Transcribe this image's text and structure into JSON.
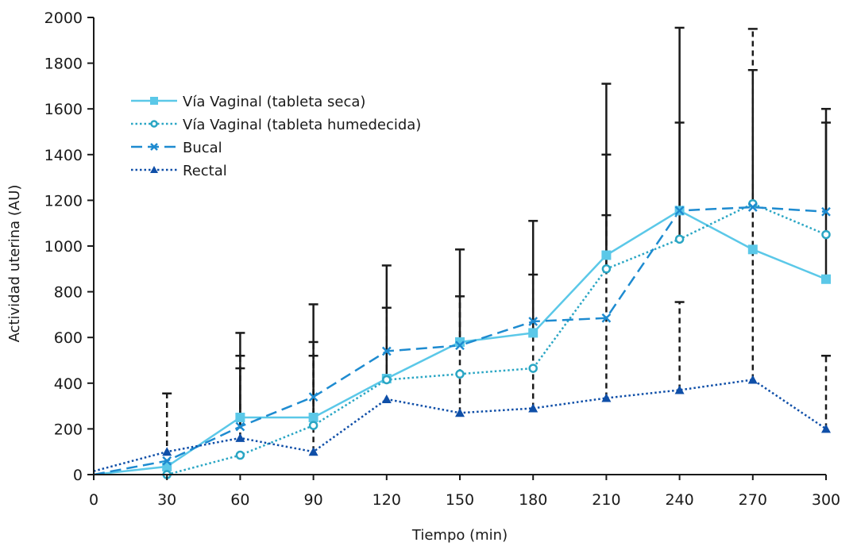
{
  "chart_data": {
    "type": "line",
    "title": "",
    "xlabel": "Tiempo (min)",
    "ylabel": "Actividad uterina (AU)",
    "xlim": [
      0,
      300
    ],
    "ylim": [
      0,
      2000
    ],
    "x_ticks": [
      0,
      30,
      60,
      90,
      120,
      150,
      180,
      210,
      240,
      270,
      300
    ],
    "y_ticks": [
      0,
      200,
      400,
      600,
      800,
      1000,
      1200,
      1400,
      1600,
      1800,
      2000
    ],
    "grid": false,
    "legend_position": "top-left",
    "series": [
      {
        "name": "Vía Vaginal (tableta seca)",
        "color": "#5bc8e8",
        "line_style": "solid",
        "marker": "square",
        "points": [
          [
            0,
            0
          ],
          [
            30,
            35
          ],
          [
            60,
            250
          ],
          [
            90,
            250
          ],
          [
            120,
            420
          ],
          [
            150,
            580
          ],
          [
            180,
            620
          ],
          [
            210,
            960
          ],
          [
            240,
            1155
          ],
          [
            270,
            985
          ],
          [
            300,
            855
          ]
        ]
      },
      {
        "name": "Vía Vaginal (tableta humedecida)",
        "color": "#2aa6c4",
        "line_style": "dotted",
        "marker": "circle",
        "points": [
          [
            30,
            0
          ],
          [
            60,
            85
          ],
          [
            90,
            215
          ],
          [
            120,
            415
          ],
          [
            150,
            440
          ],
          [
            180,
            465
          ],
          [
            210,
            900
          ],
          [
            240,
            1030
          ],
          [
            270,
            1185
          ],
          [
            300,
            1050
          ]
        ]
      },
      {
        "name": "Bucal",
        "color": "#1e8bd0",
        "line_style": "dashed",
        "marker": "x",
        "points": [
          [
            0,
            0
          ],
          [
            30,
            60
          ],
          [
            60,
            210
          ],
          [
            90,
            340
          ],
          [
            120,
            540
          ],
          [
            150,
            565
          ],
          [
            180,
            670
          ],
          [
            210,
            685
          ],
          [
            240,
            1155
          ],
          [
            270,
            1170
          ],
          [
            300,
            1150
          ]
        ]
      },
      {
        "name": "Rectal",
        "color": "#0f4fa8",
        "line_style": "dotted",
        "marker": "triangle",
        "points": [
          [
            0,
            15
          ],
          [
            30,
            100
          ],
          [
            60,
            160
          ],
          [
            90,
            100
          ],
          [
            120,
            330
          ],
          [
            150,
            270
          ],
          [
            180,
            290
          ],
          [
            210,
            335
          ],
          [
            240,
            370
          ],
          [
            270,
            415
          ],
          [
            300,
            200
          ]
        ]
      }
    ],
    "error_bars": [
      {
        "x": 30,
        "from": 0,
        "to": 355,
        "style": "dashed"
      },
      {
        "x": 60,
        "from": 250,
        "to": 620,
        "style": "solid"
      },
      {
        "x": 60,
        "from": 160,
        "to": 520,
        "style": "dashed"
      },
      {
        "x": 60,
        "from": 210,
        "to": 465,
        "style": "solid"
      },
      {
        "x": 90,
        "from": 250,
        "to": 745,
        "style": "solid"
      },
      {
        "x": 90,
        "from": 215,
        "to": 580,
        "style": "dashed"
      },
      {
        "x": 90,
        "from": 100,
        "to": 520,
        "style": "dashed"
      },
      {
        "x": 120,
        "from": 420,
        "to": 915,
        "style": "solid"
      },
      {
        "x": 120,
        "from": 415,
        "to": 730,
        "style": "dashed"
      },
      {
        "x": 150,
        "from": 565,
        "to": 985,
        "style": "solid"
      },
      {
        "x": 150,
        "from": 270,
        "to": 780,
        "style": "dashed"
      },
      {
        "x": 180,
        "from": 620,
        "to": 1110,
        "style": "solid"
      },
      {
        "x": 180,
        "from": 290,
        "to": 875,
        "style": "dashed"
      },
      {
        "x": 210,
        "from": 960,
        "to": 1710,
        "style": "solid"
      },
      {
        "x": 210,
        "from": 900,
        "to": 1400,
        "style": "solid"
      },
      {
        "x": 210,
        "from": 335,
        "to": 1135,
        "style": "dashed"
      },
      {
        "x": 240,
        "from": 1155,
        "to": 1955,
        "style": "solid"
      },
      {
        "x": 240,
        "from": 1030,
        "to": 1540,
        "style": "solid"
      },
      {
        "x": 240,
        "from": 370,
        "to": 755,
        "style": "dashed"
      },
      {
        "x": 270,
        "from": 1170,
        "to": 1770,
        "style": "solid"
      },
      {
        "x": 270,
        "from": 415,
        "to": 1950,
        "style": "dashed"
      },
      {
        "x": 300,
        "from": 855,
        "to": 1600,
        "style": "solid"
      },
      {
        "x": 300,
        "from": 1150,
        "to": 1540,
        "style": "solid"
      },
      {
        "x": 300,
        "from": 200,
        "to": 520,
        "style": "dashed"
      }
    ]
  }
}
